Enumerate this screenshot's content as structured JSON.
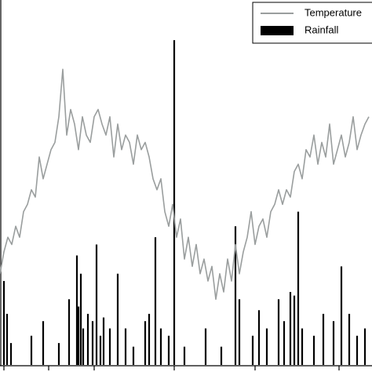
{
  "chart_data": {
    "type": "combo",
    "legend": "upper right",
    "xlim": [
      0,
      474
    ],
    "ylim": [
      0,
      100
    ],
    "series": [
      {
        "name": "Temperature",
        "type": "line",
        "color": "#9a9e9e",
        "x": [
          0,
          5,
          10,
          15,
          20,
          25,
          30,
          35,
          40,
          45,
          50,
          55,
          60,
          65,
          70,
          75,
          80,
          85,
          90,
          95,
          100,
          105,
          110,
          115,
          120,
          125,
          130,
          135,
          140,
          145,
          150,
          155,
          160,
          165,
          170,
          175,
          180,
          185,
          190,
          195,
          200,
          205,
          210,
          215,
          220,
          225,
          230,
          235,
          240,
          245,
          250,
          255,
          260,
          265,
          270,
          275,
          280,
          285,
          290,
          295,
          300,
          305,
          310,
          315,
          320,
          325,
          330,
          335,
          340,
          345,
          350,
          355,
          360,
          365,
          370,
          375,
          380,
          385,
          390,
          395,
          400,
          405,
          410,
          415,
          420,
          425,
          430,
          435,
          440,
          445,
          450,
          455,
          460,
          465,
          470
        ],
        "values": [
          25,
          31,
          35,
          33,
          38,
          35,
          42,
          44,
          48,
          46,
          57,
          51,
          55,
          59,
          61,
          68,
          81,
          63,
          70,
          66,
          59,
          68,
          63,
          61,
          68,
          70,
          66,
          63,
          68,
          57,
          66,
          59,
          63,
          61,
          55,
          63,
          59,
          61,
          57,
          51,
          48,
          51,
          42,
          38,
          44,
          35,
          40,
          29,
          35,
          27,
          33,
          25,
          29,
          23,
          27,
          18,
          25,
          20,
          29,
          23,
          33,
          25,
          31,
          35,
          42,
          33,
          38,
          40,
          35,
          42,
          44,
          48,
          44,
          48,
          46,
          53,
          55,
          51,
          59,
          57,
          63,
          55,
          61,
          57,
          66,
          55,
          59,
          63,
          57,
          61,
          68,
          59,
          63,
          66,
          68
        ]
      },
      {
        "name": "Rainfall",
        "type": "bar",
        "color": "#000000",
        "x": [
          5,
          9,
          14,
          40,
          55,
          75,
          88,
          98,
          100,
          103,
          106,
          112,
          118,
          123,
          128,
          132,
          140,
          150,
          160,
          170,
          185,
          190,
          198,
          205,
          215,
          222,
          235,
          262,
          282,
          300,
          305,
          322,
          330,
          340,
          355,
          362,
          370,
          375,
          380,
          385,
          400,
          412,
          425,
          435,
          445,
          455,
          465
        ],
        "values": [
          23,
          14,
          6,
          8,
          12,
          6,
          18,
          30,
          16,
          25,
          10,
          14,
          12,
          33,
          8,
          13,
          10,
          25,
          10,
          5,
          12,
          14,
          35,
          10,
          8,
          89,
          5,
          10,
          5,
          38,
          18,
          8,
          15,
          10,
          18,
          12,
          20,
          19,
          42,
          10,
          8,
          14,
          12,
          27,
          14,
          8,
          10
        ]
      }
    ]
  }
}
